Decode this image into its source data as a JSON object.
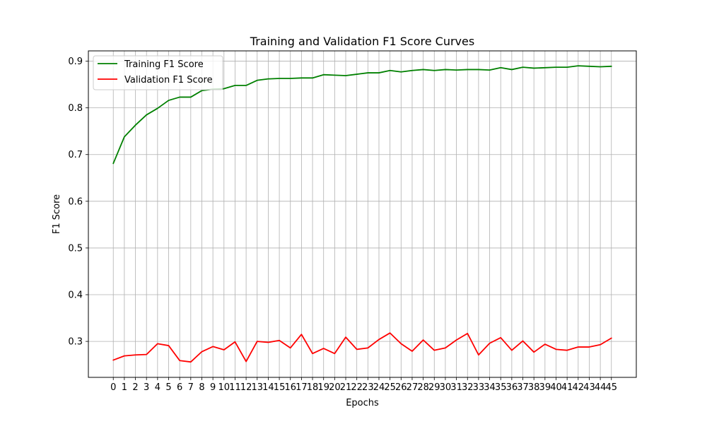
{
  "chart_data": {
    "type": "line",
    "title": "Training and Validation F1 Score Curves",
    "xlabel": "Epochs",
    "ylabel": "F1 Score",
    "x": [
      0,
      1,
      2,
      3,
      4,
      5,
      6,
      7,
      8,
      9,
      10,
      11,
      12,
      13,
      14,
      15,
      16,
      17,
      18,
      19,
      20,
      21,
      22,
      23,
      24,
      25,
      26,
      27,
      28,
      29,
      30,
      31,
      32,
      33,
      34,
      35,
      36,
      37,
      38,
      39,
      40,
      41,
      42,
      43,
      44,
      45
    ],
    "xlim": [
      -2.25,
      47.25
    ],
    "ylim": [
      0.223,
      0.922
    ],
    "yticks": [
      0.3,
      0.4,
      0.5,
      0.6,
      0.7,
      0.8,
      0.9
    ],
    "ytick_labels": [
      "0.3",
      "0.4",
      "0.5",
      "0.6",
      "0.7",
      "0.8",
      "0.9"
    ],
    "grid": true,
    "legend_position": "top-left",
    "series": [
      {
        "name": "Training F1 Score",
        "color": "#008000",
        "values": [
          0.681,
          0.738,
          0.763,
          0.785,
          0.799,
          0.816,
          0.823,
          0.823,
          0.837,
          0.84,
          0.841,
          0.848,
          0.848,
          0.859,
          0.862,
          0.863,
          0.863,
          0.864,
          0.864,
          0.871,
          0.87,
          0.869,
          0.872,
          0.875,
          0.875,
          0.88,
          0.877,
          0.88,
          0.882,
          0.88,
          0.882,
          0.881,
          0.882,
          0.882,
          0.881,
          0.886,
          0.882,
          0.887,
          0.885,
          0.886,
          0.887,
          0.887,
          0.89,
          0.889,
          0.888,
          0.889
        ]
      },
      {
        "name": "Validation F1 Score",
        "color": "#ff0000",
        "values": [
          0.26,
          0.269,
          0.271,
          0.272,
          0.295,
          0.291,
          0.259,
          0.256,
          0.278,
          0.289,
          0.282,
          0.299,
          0.257,
          0.3,
          0.298,
          0.302,
          0.286,
          0.315,
          0.274,
          0.285,
          0.274,
          0.309,
          0.283,
          0.286,
          0.304,
          0.318,
          0.295,
          0.279,
          0.303,
          0.281,
          0.286,
          0.303,
          0.317,
          0.271,
          0.296,
          0.308,
          0.281,
          0.301,
          0.277,
          0.294,
          0.283,
          0.281,
          0.288,
          0.288,
          0.293,
          0.307
        ]
      }
    ]
  }
}
